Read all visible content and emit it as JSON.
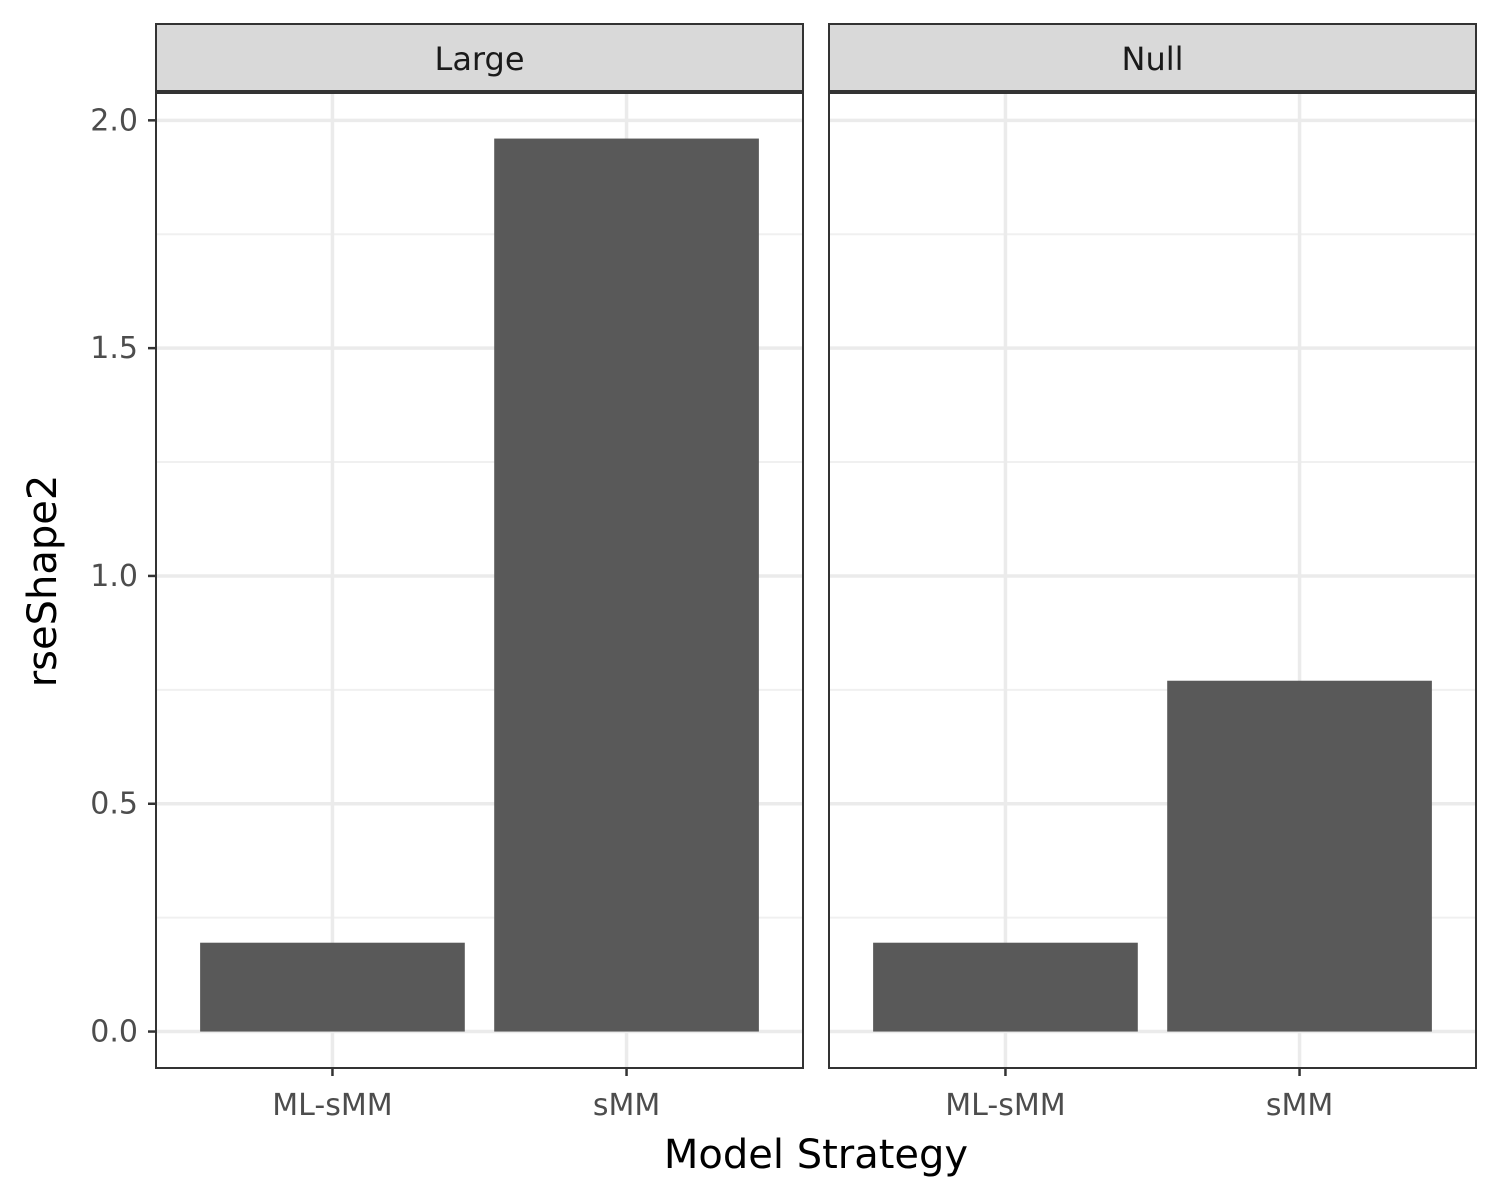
{
  "chart_data": {
    "type": "bar",
    "xlabel": "Model Strategy",
    "ylabel": "rseShape2",
    "ylim": [
      -0.08,
      2.06
    ],
    "yticks": [
      0.0,
      0.5,
      1.0,
      1.5,
      2.0
    ],
    "ytick_labels": [
      "0.0",
      "0.5",
      "1.0",
      "1.5",
      "2.0"
    ],
    "categories": [
      "ML-sMM",
      "sMM"
    ],
    "grid": true,
    "bar_color": "#595959",
    "panels": [
      {
        "facet": "Large",
        "values": [
          0.195,
          1.96
        ]
      },
      {
        "facet": "Null",
        "values": [
          0.195,
          0.77
        ]
      }
    ]
  }
}
